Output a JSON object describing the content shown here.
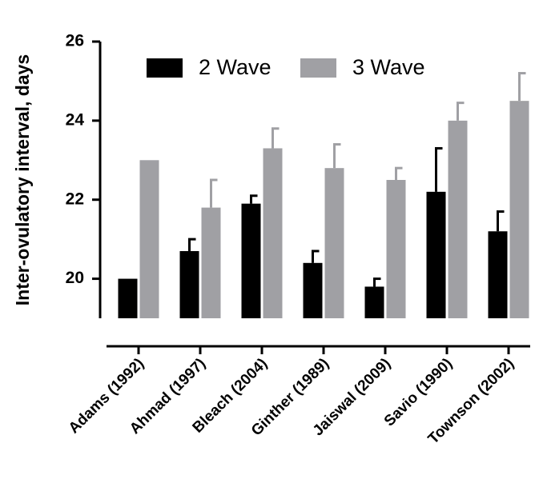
{
  "chart_data": {
    "type": "bar",
    "ylabel": "Inter-ovulatory interval, days",
    "categories": [
      "Adams (1992)",
      "Ahmad (1997)",
      "Bleach (2004)",
      "Ginther (1989)",
      "Jaiswal (2009)",
      "Savio (1990)",
      "Townson (2002)"
    ],
    "series": [
      {
        "name": "2 Wave",
        "color": "#000000",
        "values": [
          20.0,
          20.7,
          21.9,
          20.4,
          19.8,
          22.2,
          21.2
        ],
        "errors": [
          null,
          0.3,
          0.2,
          0.3,
          0.2,
          1.1,
          0.5
        ]
      },
      {
        "name": "3 Wave",
        "color": "#a0a0a4",
        "values": [
          23.0,
          21.8,
          23.3,
          22.8,
          22.5,
          24.0,
          24.5
        ],
        "errors": [
          null,
          0.7,
          0.5,
          0.6,
          0.3,
          0.45,
          0.7
        ]
      }
    ],
    "ylim": [
      19,
      26
    ],
    "yticks": [
      20,
      22,
      24,
      26
    ],
    "legend": "top"
  }
}
